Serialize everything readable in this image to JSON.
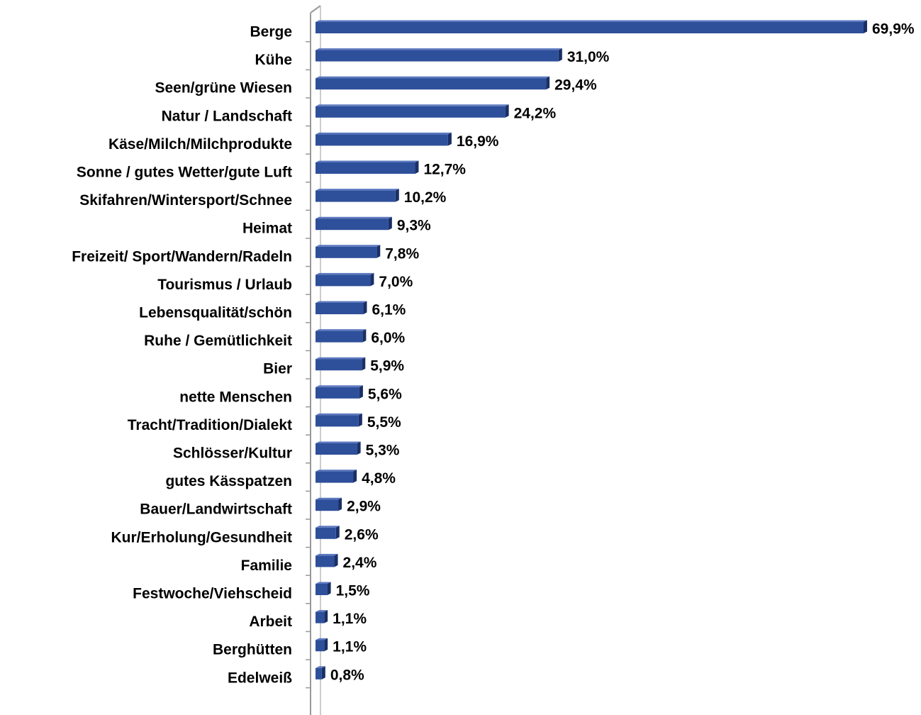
{
  "chart_data": {
    "type": "bar",
    "orientation": "horizontal",
    "color": "#2e4f9a",
    "categories": [
      "Berge",
      "Kühe",
      "Seen/grüne Wiesen",
      "Natur / Landschaft",
      "Käse/Milch/Milchprodukte",
      "Sonne / gutes Wetter/gute Luft",
      "Skifahren/Wintersport/Schnee",
      "Heimat",
      "Freizeit/ Sport/Wandern/Radeln",
      "Tourismus / Urlaub",
      "Lebensqualität/schön",
      "Ruhe / Gemütlichkeit",
      "Bier",
      "nette Menschen",
      "Tracht/Tradition/Dialekt",
      "Schlösser/Kultur",
      "gutes Kässpatzen",
      "Bauer/Landwirtschaft",
      "Kur/Erholung/Gesundheit",
      "Familie",
      "Festwoche/Viehscheid",
      "Arbeit",
      "Berghütten",
      "Edelweiß"
    ],
    "values": [
      69.9,
      31.0,
      29.4,
      24.2,
      16.9,
      12.7,
      10.2,
      9.3,
      7.8,
      7.0,
      6.1,
      6.0,
      5.9,
      5.6,
      5.5,
      5.3,
      4.8,
      2.9,
      2.6,
      2.4,
      1.5,
      1.1,
      1.1,
      0.8
    ],
    "value_labels": [
      "69,9%",
      "31,0%",
      "29,4%",
      "24,2%",
      "16,9%",
      "12,7%",
      "10,2%",
      "9,3%",
      "7,8%",
      "7,0%",
      "6,1%",
      "6,0%",
      "5,9%",
      "5,6%",
      "5,5%",
      "5,3%",
      "4,8%",
      "2,9%",
      "2,6%",
      "2,4%",
      "1,5%",
      "1,1%",
      "1,1%",
      "0,8%"
    ]
  }
}
